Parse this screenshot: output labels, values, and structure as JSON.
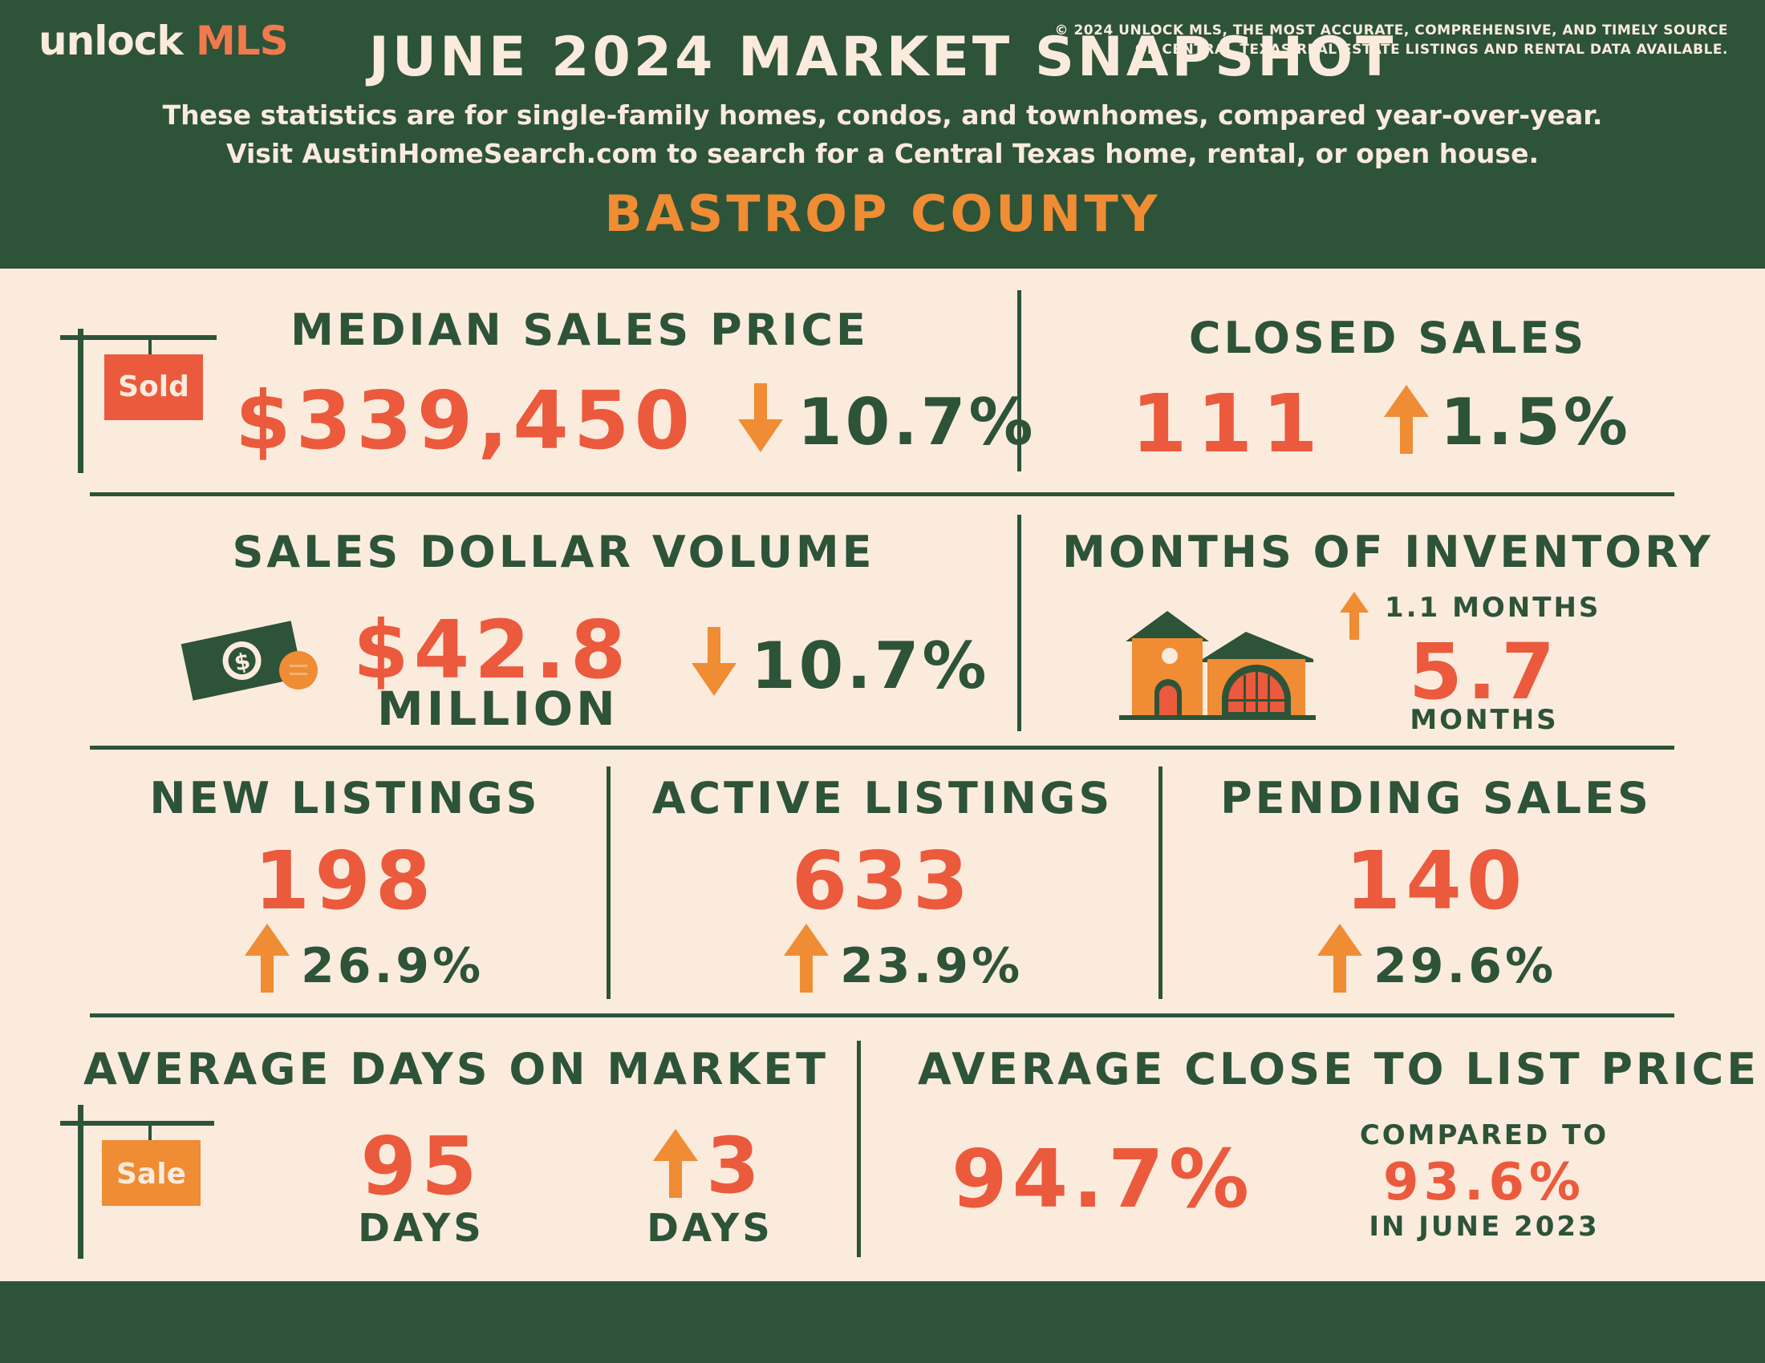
{
  "header": {
    "title": "JUNE 2024 MARKET SNAPSHOT",
    "subtitle_line1": "These statistics are for single-family homes, condos, and townhomes, compared year-over-year.",
    "subtitle_line2": "Visit AustinHomeSearch.com to search for a Central Texas home, rental, or open house.",
    "county": "BASTROP COUNTY"
  },
  "median_sales_price": {
    "label": "MEDIAN SALES PRICE",
    "value": "$339,450",
    "change": "10.7%",
    "direction": "down",
    "sign_text": "Sold"
  },
  "closed_sales": {
    "label": "CLOSED SALES",
    "value": "111",
    "change": "1.5%",
    "direction": "up"
  },
  "sales_dollar_volume": {
    "label": "SALES DOLLAR VOLUME",
    "value": "$42.8",
    "unit": "MILLION",
    "change": "10.7%",
    "direction": "down"
  },
  "months_of_inventory": {
    "label": "MONTHS OF INVENTORY",
    "change": "1.1 MONTHS",
    "direction": "up",
    "value": "5.7",
    "unit": "MONTHS"
  },
  "new_listings": {
    "label": "NEW LISTINGS",
    "value": "198",
    "change": "26.9%",
    "direction": "up"
  },
  "active_listings": {
    "label": "ACTIVE LISTINGS",
    "value": "633",
    "change": "23.9%",
    "direction": "up"
  },
  "pending_sales": {
    "label": "PENDING SALES",
    "value": "140",
    "change": "29.6%",
    "direction": "up"
  },
  "avg_days_on_market": {
    "label": "AVERAGE DAYS ON MARKET",
    "value": "95",
    "unit": "DAYS",
    "change": "3",
    "change_unit": "DAYS",
    "direction": "up",
    "sign_text": "Sale"
  },
  "avg_close_to_list": {
    "label": "AVERAGE CLOSE TO LIST PRICE",
    "value": "94.7%",
    "compared_label": "COMPARED TO",
    "compared_value": "93.6%",
    "compared_period": "IN JUNE 2023"
  },
  "footer": {
    "logo_unlock": "unlock",
    "logo_mls": "MLS",
    "copyright_line1": "© 2024 UNLOCK MLS, THE MOST ACCURATE, COMPREHENSIVE, AND TIMELY SOURCE",
    "copyright_line2": "OF CENTRAL TEXAS REAL ESTATE LISTINGS AND RENTAL DATA AVAILABLE."
  },
  "colors": {
    "green": "#2d5339",
    "cream": "#fbebdd",
    "red_orange": "#eb5a3c",
    "orange": "#f08c33"
  },
  "icons": [
    "sold-sign-icon",
    "money-bill-icon",
    "house-icon",
    "sale-sign-icon",
    "arrow-up-icon",
    "arrow-down-icon"
  ]
}
